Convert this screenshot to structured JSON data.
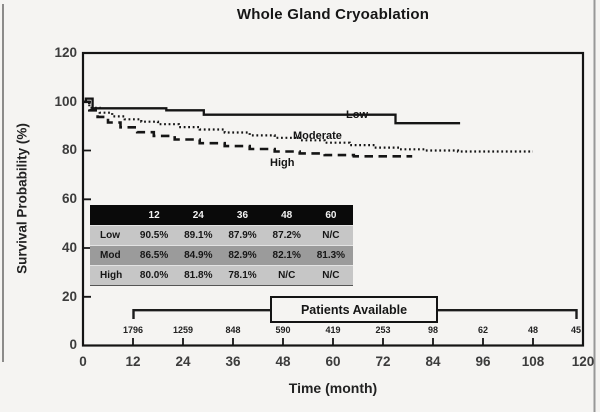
{
  "title": "Whole Gland Cryoablation",
  "chart_data": {
    "type": "line",
    "subtype": "kaplan-meier-step",
    "title": "Whole Gland Cryoablation",
    "xlabel": "Time (month)",
    "ylabel": "Survival Probability (%)",
    "xlim": [
      0,
      120
    ],
    "ylim": [
      0,
      120
    ],
    "grid": false,
    "x_ticks": [
      0,
      12,
      24,
      36,
      48,
      60,
      72,
      84,
      96,
      108,
      120
    ],
    "y_ticks": [
      0,
      20,
      40,
      60,
      80,
      100,
      120
    ],
    "series": [
      {
        "name": "Low",
        "style": "solid",
        "points": [
          [
            0,
            100
          ],
          [
            0.7,
            101.3
          ],
          [
            2.3,
            97.3
          ],
          [
            20,
            96.5
          ],
          [
            29,
            94.7
          ],
          [
            75,
            91.2
          ],
          [
            90.5,
            91.2
          ]
        ]
      },
      {
        "name": "Moderate",
        "style": "dotted",
        "points": [
          [
            0,
            100
          ],
          [
            1.5,
            97.5
          ],
          [
            4,
            95.5
          ],
          [
            7,
            94
          ],
          [
            10,
            92.8
          ],
          [
            14,
            91.8
          ],
          [
            18,
            90.8
          ],
          [
            23,
            89.6
          ],
          [
            28,
            88.6
          ],
          [
            34,
            87.4
          ],
          [
            40,
            86.2
          ],
          [
            46,
            85.2
          ],
          [
            52,
            84.2
          ],
          [
            58,
            83.2
          ],
          [
            64,
            82.2
          ],
          [
            70,
            81.2
          ],
          [
            76,
            80.5
          ],
          [
            82,
            80
          ],
          [
            90,
            79.6
          ],
          [
            108,
            79.6
          ]
        ]
      },
      {
        "name": "High",
        "style": "dashed",
        "points": [
          [
            0,
            100
          ],
          [
            1.5,
            96.5
          ],
          [
            3.5,
            93.8
          ],
          [
            6,
            91.5
          ],
          [
            9,
            89.5
          ],
          [
            13,
            87.5
          ],
          [
            17,
            86
          ],
          [
            22,
            84.5
          ],
          [
            28,
            83
          ],
          [
            34,
            81.8
          ],
          [
            40,
            80.6
          ],
          [
            46,
            79.6
          ],
          [
            52,
            78.8
          ],
          [
            58,
            78.1
          ],
          [
            65,
            77.6
          ],
          [
            79,
            77.6
          ]
        ]
      }
    ],
    "risk_table": {
      "columns": [
        "",
        "12",
        "24",
        "36",
        "48",
        "60"
      ],
      "rows": [
        {
          "label": "Low",
          "values": [
            "90.5%",
            "89.1%",
            "87.9%",
            "87.2%",
            "N/C"
          ]
        },
        {
          "label": "Mod",
          "values": [
            "86.5%",
            "84.9%",
            "82.9%",
            "82.1%",
            "81.3%"
          ]
        },
        {
          "label": "High",
          "values": [
            "80.0%",
            "81.8%",
            "78.1%",
            "N/C",
            "N/C"
          ]
        }
      ]
    },
    "patients": {
      "label": "Patients Available",
      "months": [
        12,
        24,
        36,
        48,
        60,
        72,
        84,
        96,
        108,
        120
      ],
      "counts": [
        "1796",
        "1259",
        "848",
        "590",
        "419",
        "253",
        "98",
        "62",
        "48",
        "45"
      ]
    },
    "colors": {
      "curve": "#151515",
      "table_header_bg": "#0a0a0a",
      "table_row_light": "#c6c6c6",
      "table_row_dark": "#9b9b9b",
      "background": "#f5f4f2"
    },
    "legend_position": "inline-labels-on-curves"
  }
}
